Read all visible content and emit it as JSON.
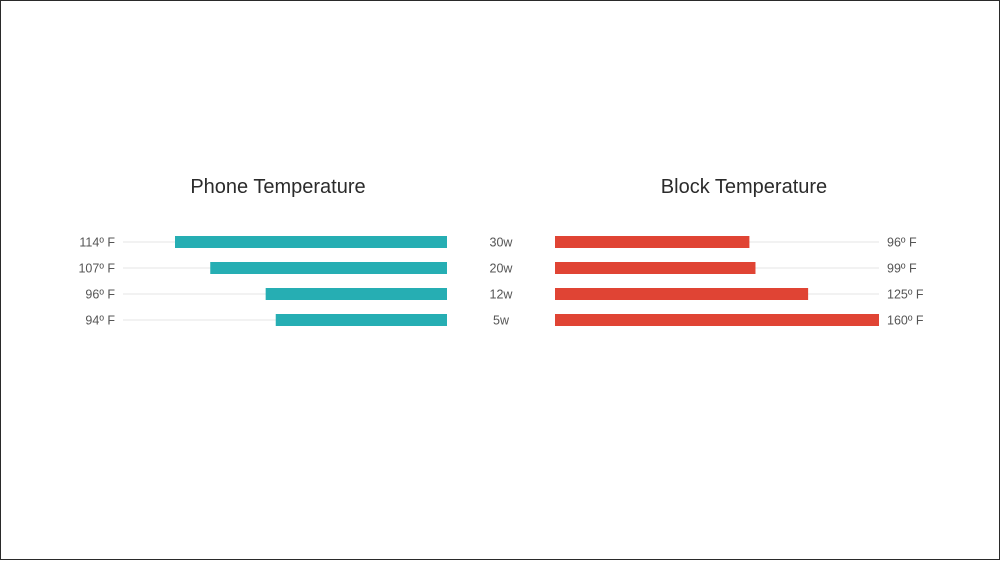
{
  "chart_data": [
    {
      "type": "bar",
      "orientation": "horizontal",
      "title": "Phone Temperature",
      "categories": [
        "30w",
        "20w",
        "12w",
        "5w"
      ],
      "values": [
        114,
        107,
        96,
        94
      ],
      "value_labels": [
        "114º F",
        "107º F",
        "96º F",
        "94º F"
      ],
      "xlim": [
        60,
        125
      ],
      "bar_direction": "right-to-left",
      "color": "#26aeb3"
    },
    {
      "type": "bar",
      "orientation": "horizontal",
      "title": "Block Temperature",
      "categories": [
        "30w",
        "20w",
        "12w",
        "5w"
      ],
      "values": [
        96,
        99,
        125,
        160
      ],
      "value_labels": [
        "96º F",
        "99º F",
        "125º F",
        "160º F"
      ],
      "xlim": [
        0,
        160
      ],
      "bar_direction": "left-to-right",
      "color": "#e04434"
    }
  ],
  "colors": {
    "track": "#e4e4e4",
    "text": "#555555",
    "title": "#2b2b2b"
  }
}
